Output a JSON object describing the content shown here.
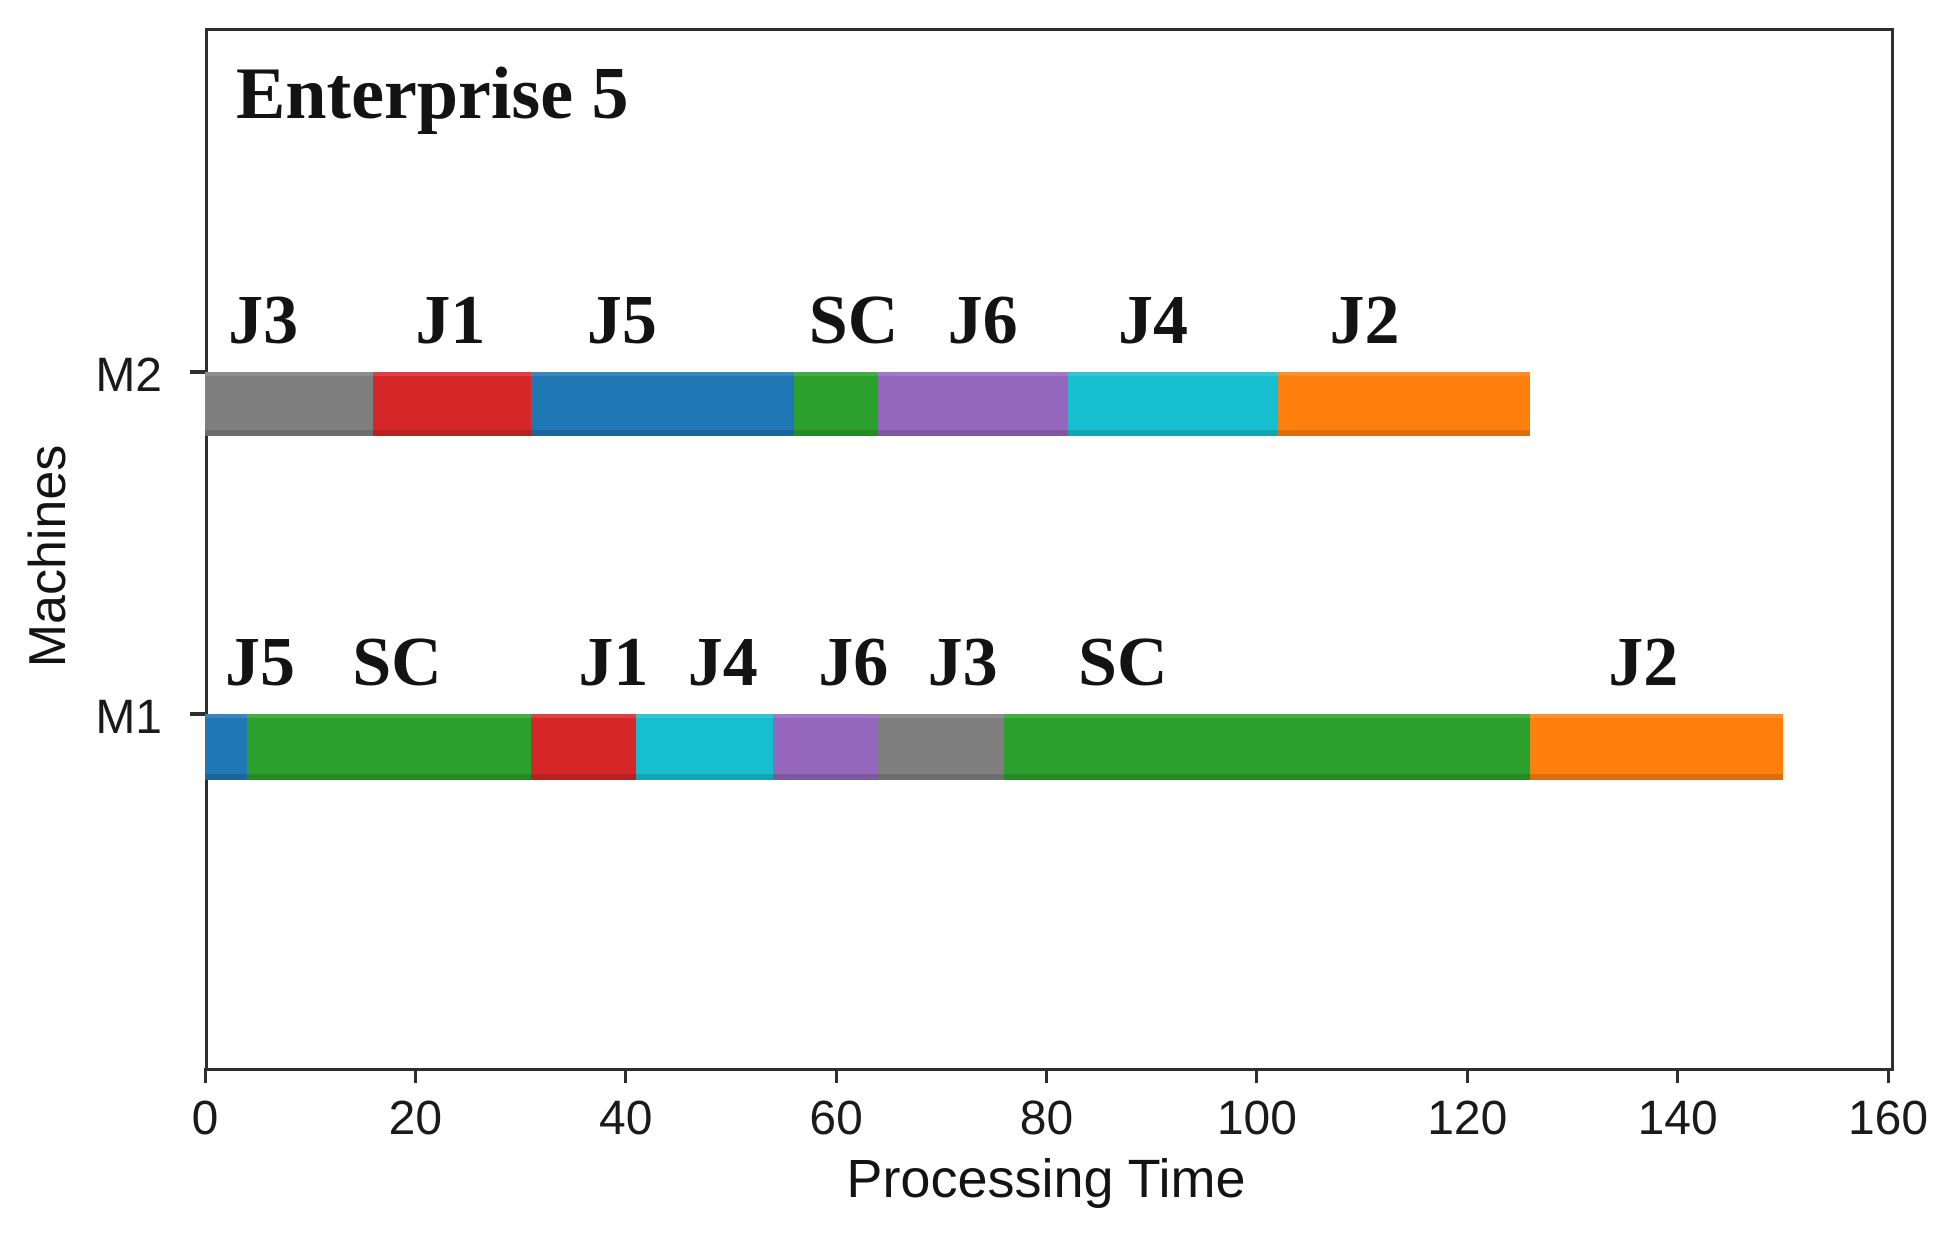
{
  "chart_data": {
    "type": "bar",
    "subtype": "gantt-schedule",
    "title": "Enterprise 5",
    "xlabel": "Processing Time",
    "ylabel": "Machines",
    "xlim": [
      0,
      160
    ],
    "x_ticks": [
      0,
      20,
      40,
      60,
      80,
      100,
      120,
      140,
      160
    ],
    "grid": "off",
    "legend": "none",
    "colors": {
      "blue": "#1f77b4",
      "orange": "#ff7f0e",
      "green": "#2ca02c",
      "red": "#d62728",
      "purple": "#9467bd",
      "gray": "#7f7f7f",
      "cyan": "#17becf",
      "frame": "#2e2e2e"
    },
    "rows": [
      {
        "machine": "M2",
        "segments": [
          {
            "job": "J3",
            "start": 0,
            "end": 16,
            "color_key": "gray",
            "label_x": 2.2
          },
          {
            "job": "J1",
            "start": 16,
            "end": 31,
            "color_key": "red",
            "label_x": 20.0
          },
          {
            "job": "J5",
            "start": 31,
            "end": 56,
            "color_key": "blue",
            "label_x": 36.3
          },
          {
            "job": "SC",
            "start": 56,
            "end": 64,
            "color_key": "green",
            "label_x": 57.4
          },
          {
            "job": "J6",
            "start": 64,
            "end": 82,
            "color_key": "purple",
            "label_x": 70.6
          },
          {
            "job": "J4",
            "start": 82,
            "end": 102,
            "color_key": "cyan",
            "label_x": 86.8
          },
          {
            "job": "J2",
            "start": 102,
            "end": 126,
            "color_key": "orange",
            "label_x": 106.9
          }
        ]
      },
      {
        "machine": "M1",
        "segments": [
          {
            "job": "J5",
            "start": 0,
            "end": 4,
            "color_key": "blue",
            "label_x": 1.9
          },
          {
            "job": "SC",
            "start": 4,
            "end": 31,
            "color_key": "green",
            "label_x": 14.0
          },
          {
            "job": "J1",
            "start": 31,
            "end": 41,
            "color_key": "red",
            "label_x": 35.5
          },
          {
            "job": "J4",
            "start": 41,
            "end": 54,
            "color_key": "cyan",
            "label_x": 45.9
          },
          {
            "job": "J6",
            "start": 54,
            "end": 64,
            "color_key": "purple",
            "label_x": 58.3
          },
          {
            "job": "J3",
            "start": 64,
            "end": 76,
            "color_key": "gray",
            "label_x": 68.7
          },
          {
            "job": "SC",
            "start": 76,
            "end": 126,
            "color_key": "green",
            "label_x": 83.0
          },
          {
            "job": "J2",
            "start": 126,
            "end": 150,
            "color_key": "orange",
            "label_x": 133.4
          }
        ]
      }
    ]
  }
}
